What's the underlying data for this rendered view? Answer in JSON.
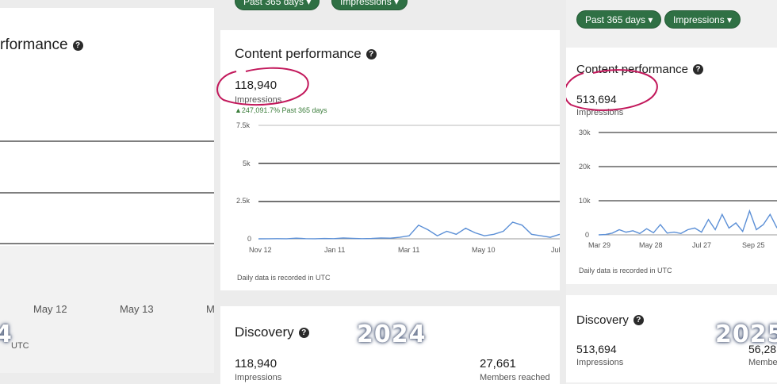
{
  "panel_2023": {
    "title": "rformance",
    "x_ticks": [
      "May 12",
      "May 13",
      "M"
    ],
    "footer": "UTC",
    "year": "4"
  },
  "panel_2024": {
    "filter_range_label": "Past 365 days",
    "filter_metric_label": "Impressions",
    "title": "Content performance",
    "impressions_value": "118,940",
    "impressions_label": "Impressions",
    "change_text": "▲247,091.7% Past 365 days",
    "footnote": "Daily data is recorded in UTC",
    "discovery_title": "Discovery",
    "discovery_impressions": "118,940",
    "discovery_impressions_label": "Impressions",
    "members_reached": "27,661",
    "members_reached_label": "Members reached",
    "year": "2024",
    "chart_data": {
      "type": "line",
      "ylim": [
        0,
        7500
      ],
      "y_ticks": [
        "7.5k",
        "5k",
        "2.5k",
        "0"
      ],
      "x_ticks": [
        "Nov 12",
        "Jan 11",
        "Mar 11",
        "May 10",
        "Jul"
      ],
      "series": [
        {
          "values": [
            0,
            5,
            10,
            5,
            40,
            10,
            5,
            20,
            10,
            60,
            30,
            10,
            20,
            60,
            40,
            100,
            200,
            900,
            600,
            200,
            500,
            300,
            700,
            400,
            200,
            300,
            500,
            1100,
            900,
            300,
            200,
            100,
            300
          ]
        }
      ]
    }
  },
  "panel_2025": {
    "filter_range_label": "Past 365 days",
    "filter_metric_label": "Impressions",
    "title": "Content performance",
    "impressions_value": "513,694",
    "impressions_label": "Impressions",
    "footnote": "Daily data is recorded in UTC",
    "discovery_title": "Discovery",
    "discovery_impressions": "513,694",
    "discovery_impressions_label": "Impressions",
    "members_reached": "56,28",
    "members_reached_label": "Membe",
    "year": "2025",
    "chart_data": {
      "type": "line",
      "ylim": [
        0,
        30000
      ],
      "y_ticks": [
        "30k",
        "20k",
        "10k",
        "0"
      ],
      "x_ticks": [
        "Mar 29",
        "May 28",
        "Jul 27",
        "Sep 25"
      ],
      "series": [
        {
          "values": [
            0,
            100,
            500,
            1500,
            800,
            1200,
            400,
            1800,
            600,
            3000,
            500,
            800,
            400,
            1500,
            2000,
            800,
            4500,
            1500,
            6000,
            2000,
            3500,
            1000,
            7000,
            1500,
            3000,
            6000,
            2000
          ]
        }
      ]
    }
  },
  "colors": {
    "accent": "#2f7044",
    "line": "#5b8fd6",
    "marker": "#c2185b"
  }
}
